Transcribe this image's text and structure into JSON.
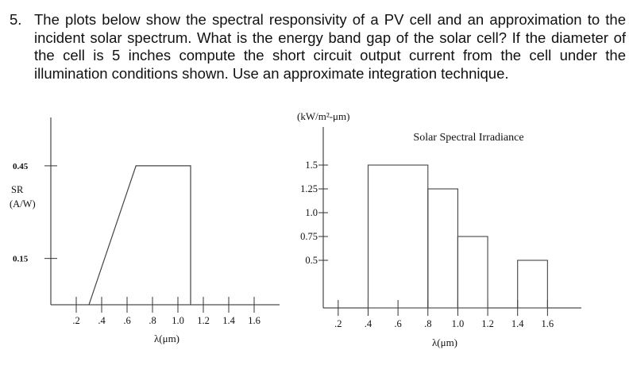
{
  "question": {
    "number": "5.",
    "text": "The plots below show the spectral responsivity of a PV cell and an approximation to the incident solar spectrum. What is the energy band gap of the solar cell? If the diameter of the cell is 5 inches compute the short circuit output current from the cell under the illumination conditions shown. Use an approximate integration technique."
  },
  "chart_data": [
    {
      "type": "line",
      "title": "",
      "ylabel_line1": "SR",
      "ylabel_line2": "(A/W)",
      "xlabel": "λ(μm)",
      "xlim": [
        0,
        1.8
      ],
      "ylim": [
        0,
        0.55
      ],
      "x_ticks": [
        0.2,
        0.4,
        0.6,
        0.8,
        1.0,
        1.2,
        1.4,
        1.6
      ],
      "x_tick_labels": [
        ".2",
        ".4",
        ".6",
        ".8",
        "1.0",
        "1.2",
        "1.4",
        "1.6"
      ],
      "y_ticks": [
        0.15,
        0.45
      ],
      "y_tick_labels": [
        "0.15",
        "0.45"
      ],
      "series": [
        {
          "x": [
            0.3,
            0.67,
            1.1,
            1.1
          ],
          "y": [
            0,
            0.45,
            0.45,
            0
          ]
        }
      ]
    },
    {
      "type": "bar",
      "title": "Solar Spectral Irradiance",
      "ylabel": "(kW/m²-μm)",
      "xlabel": "λ(μm)",
      "xlim": [
        0.1,
        1.8
      ],
      "ylim": [
        0,
        1.9
      ],
      "x_ticks": [
        0.2,
        0.4,
        0.6,
        0.8,
        1.0,
        1.2,
        1.4,
        1.6
      ],
      "x_tick_labels": [
        ".2",
        ".4",
        ".6",
        ".8",
        "1.0",
        "1.2",
        "1.4",
        "1.6"
      ],
      "y_ticks": [
        0.5,
        0.75,
        1.0,
        1.25,
        1.5
      ],
      "y_tick_labels": [
        "0.5",
        "0.75",
        "1.0",
        "1.25",
        "1.5"
      ],
      "bars": [
        {
          "x0": 0.4,
          "x1": 0.8,
          "value": 1.5
        },
        {
          "x0": 0.8,
          "x1": 1.0,
          "value": 1.25
        },
        {
          "x0": 1.0,
          "x1": 1.2,
          "value": 0.75
        },
        {
          "x0": 1.4,
          "x1": 1.6,
          "value": 0.5
        }
      ]
    }
  ]
}
